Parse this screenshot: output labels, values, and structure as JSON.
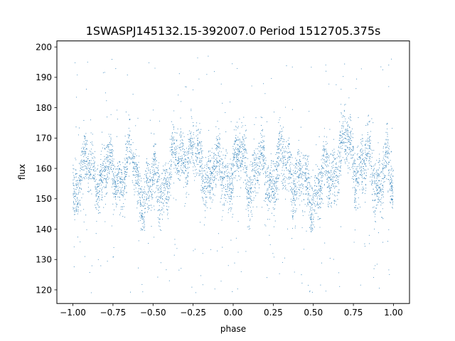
{
  "chart_data": {
    "type": "scatter",
    "title": "1SWASPJ145132.15-392007.0 Period 1512705.375s",
    "xlabel": "phase",
    "ylabel": "flux",
    "xlim": [
      -1.1,
      1.1
    ],
    "ylim": [
      115.5,
      202
    ],
    "x_ticks": [
      -1.0,
      -0.75,
      -0.5,
      -0.25,
      0.0,
      0.25,
      0.5,
      0.75,
      1.0
    ],
    "x_tick_labels": [
      "−1.00",
      "−0.75",
      "−0.50",
      "−0.25",
      "0.00",
      "0.25",
      "0.50",
      "0.75",
      "1.00"
    ],
    "y_ticks": [
      120,
      130,
      140,
      150,
      160,
      170,
      180,
      190,
      200
    ],
    "y_tick_labels": [
      "120",
      "130",
      "140",
      "150",
      "160",
      "170",
      "180",
      "190",
      "200"
    ],
    "grid": false,
    "legend": "none",
    "point_color": "#1f77b4",
    "series": [
      {
        "x_range": [
          -1.0,
          1.0
        ],
        "y_core_range": [
          141,
          177
        ],
        "y_median": 158,
        "y_full_range": [
          119,
          197
        ],
        "phase_folded_repeat": true,
        "values": [
          [
            -1.0,
            151
          ],
          [
            -0.95,
            163
          ],
          [
            -0.9,
            157
          ],
          [
            -0.85,
            158
          ],
          [
            -0.8,
            160
          ],
          [
            -0.75,
            156
          ],
          [
            -0.7,
            160
          ],
          [
            -0.65,
            162
          ],
          [
            -0.6,
            155
          ],
          [
            -0.55,
            152
          ],
          [
            -0.5,
            153
          ],
          [
            -0.45,
            155
          ],
          [
            -0.4,
            158
          ],
          [
            -0.35,
            163
          ],
          [
            -0.3,
            167
          ],
          [
            -0.25,
            164
          ],
          [
            -0.2,
            160
          ],
          [
            -0.15,
            159
          ],
          [
            -0.1,
            157
          ],
          [
            -0.05,
            160
          ],
          [
            0.0,
            159
          ],
          [
            0.05,
            163
          ],
          [
            0.1,
            158
          ],
          [
            0.15,
            158
          ],
          [
            0.2,
            160
          ],
          [
            0.25,
            156
          ],
          [
            0.3,
            160
          ],
          [
            0.35,
            162
          ],
          [
            0.4,
            155
          ],
          [
            0.45,
            152
          ],
          [
            0.5,
            153
          ],
          [
            0.55,
            155
          ],
          [
            0.6,
            158
          ],
          [
            0.65,
            163
          ],
          [
            0.7,
            167
          ],
          [
            0.75,
            164
          ],
          [
            0.8,
            160
          ],
          [
            0.85,
            159
          ],
          [
            0.9,
            157
          ],
          [
            0.95,
            160
          ],
          [
            1.0,
            151
          ]
        ]
      }
    ]
  }
}
